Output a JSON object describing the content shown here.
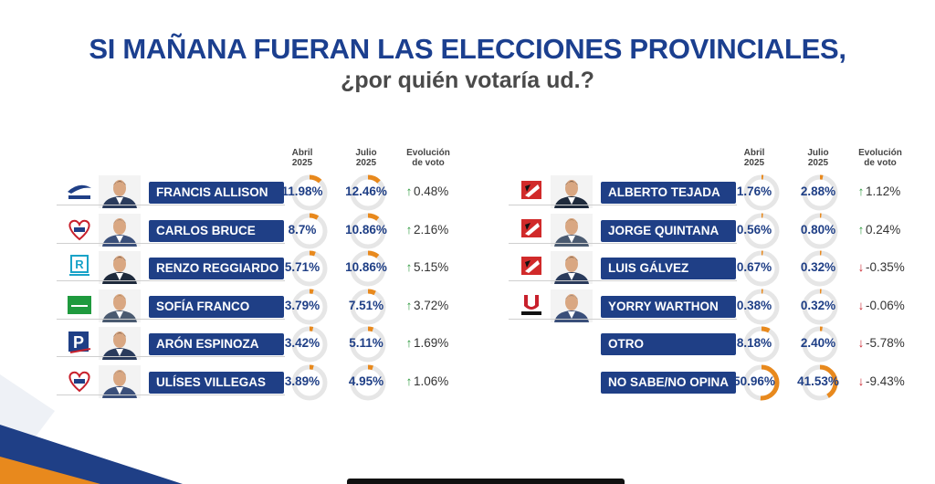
{
  "title": {
    "line1": "SI MAÑANA FUERAN LAS ELECCIONES PROVINCIALES,",
    "line2": "¿por quién votaría ud.?"
  },
  "headers": {
    "april": "Abril\n2025",
    "july": "Julio\n2025",
    "evolution": "Evolución\nde voto"
  },
  "colors": {
    "accent_blue": "#1f3f86",
    "donut_orange": "#e8891d",
    "donut_track": "#e6e6e6",
    "up_green": "#2e9a3e",
    "down_red": "#c8202c"
  },
  "chart_data": [
    {
      "type": "table",
      "columns": [
        "Abril 2025",
        "Julio 2025",
        "Evolución de voto"
      ],
      "rows": [
        {
          "name": "FRANCIS ALLISON",
          "april": "11.98%",
          "july": "12.46%",
          "evo": "0.48%",
          "dir": "up",
          "april_v": 11.98,
          "july_v": 12.46,
          "logo": "avanza-pais-logo"
        },
        {
          "name": "CARLOS BRUCE",
          "april": "8.7%",
          "july": "10.86%",
          "evo": "2.16%",
          "dir": "up",
          "april_v": 8.7,
          "july_v": 10.86,
          "logo": "somos-peru-logo"
        },
        {
          "name": "RENZO REGGIARDO",
          "april": "5.71%",
          "july": "10.86%",
          "evo": "5.15%",
          "dir": "up",
          "april_v": 5.71,
          "july_v": 10.86,
          "logo": "renovacion-popular-logo"
        },
        {
          "name": "SOFÍA FRANCO",
          "april": "3.79%",
          "july": "7.51%",
          "evo": "3.72%",
          "dir": "up",
          "april_v": 3.79,
          "july_v": 7.51,
          "logo": "green-party-logo"
        },
        {
          "name": "ARÓN ESPINOZA",
          "april": "3.42%",
          "july": "5.11%",
          "evo": "1.69%",
          "dir": "up",
          "april_v": 3.42,
          "july_v": 5.11,
          "logo": "podemos-logo"
        },
        {
          "name": "ULÍSES VILLEGAS",
          "april": "3.89%",
          "july": "4.95%",
          "evo": "1.06%",
          "dir": "up",
          "april_v": 3.89,
          "july_v": 4.95,
          "logo": "somos-peru-logo"
        }
      ]
    },
    {
      "type": "table",
      "columns": [
        "Abril 2025",
        "Julio 2025",
        "Evolución de voto"
      ],
      "rows": [
        {
          "name": "ALBERTO TEJADA",
          "april": "1.76%",
          "july": "2.88%",
          "evo": "1.12%",
          "dir": "up",
          "april_v": 1.76,
          "july_v": 2.88,
          "logo": "app-logo"
        },
        {
          "name": "JORGE QUINTANA",
          "april": "0.56%",
          "july": "0.80%",
          "evo": "0.24%",
          "dir": "up",
          "april_v": 0.56,
          "july_v": 0.8,
          "logo": "app-logo"
        },
        {
          "name": "LUIS GÁLVEZ",
          "april": "0.67%",
          "july": "0.32%",
          "evo": "-0.35%",
          "dir": "down",
          "april_v": 0.67,
          "july_v": 0.32,
          "logo": "app-logo"
        },
        {
          "name": "YORRY WARTHON",
          "april": "0.38%",
          "july": "0.32%",
          "evo": "-0.06%",
          "dir": "down",
          "april_v": 0.38,
          "july_v": 0.32,
          "logo": "unidad-logo"
        },
        {
          "name": "OTRO",
          "april": "8.18%",
          "july": "2.40%",
          "evo": "-5.78%",
          "dir": "down",
          "april_v": 8.18,
          "july_v": 2.4,
          "logo": ""
        },
        {
          "name": "NO SABE/NO OPINA",
          "april": "50.96%",
          "july": "41.53%",
          "evo": "-9.43%",
          "dir": "down",
          "april_v": 50.96,
          "july_v": 41.53,
          "logo": ""
        }
      ]
    }
  ]
}
